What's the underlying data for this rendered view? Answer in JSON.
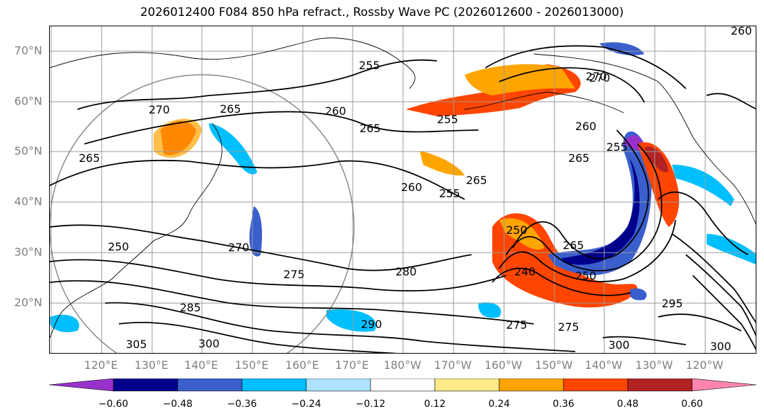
{
  "title": "2026012400 F084 850 hPa refract., Rossby Wave PC (2026012600 - 2026013000)",
  "lat_labels": [
    "70°N",
    "60°N",
    "50°N",
    "40°N",
    "30°N",
    "20°N"
  ],
  "lon_labels": [
    "120°E",
    "130°E",
    "140°E",
    "150°E",
    "160°E",
    "170°E",
    "180°W",
    "170°W",
    "160°W",
    "150°W",
    "140°W",
    "130°W",
    "120°W"
  ],
  "colorbar": {
    "ticks": [
      "−0.60",
      "−0.48",
      "−0.36",
      "−0.24",
      "−0.12",
      "0.12",
      "0.24",
      "0.36",
      "0.48",
      "0.60"
    ],
    "colors": [
      "#9932cc",
      "#00008b",
      "#3a5fcd",
      "#00bfff",
      "#aee2ff",
      "#ffffff",
      "#ffea8a",
      "#ffa500",
      "#ff4500",
      "#b22222",
      "#ff85b0"
    ]
  },
  "contour_labels": [
    {
      "text": "255"
    },
    {
      "text": "265"
    },
    {
      "text": "270"
    },
    {
      "text": "260"
    },
    {
      "text": "265"
    },
    {
      "text": "255"
    },
    {
      "text": "260"
    },
    {
      "text": "255"
    },
    {
      "text": "265"
    },
    {
      "text": "270"
    },
    {
      "text": "275"
    },
    {
      "text": "280"
    },
    {
      "text": "285"
    },
    {
      "text": "290"
    },
    {
      "text": "300"
    },
    {
      "text": "305"
    },
    {
      "text": "265"
    },
    {
      "text": "250"
    },
    {
      "text": "240"
    },
    {
      "text": "250"
    },
    {
      "text": "275"
    },
    {
      "text": "275"
    },
    {
      "text": "300"
    },
    {
      "text": "300"
    },
    {
      "text": "295"
    },
    {
      "text": "270"
    },
    {
      "text": "265"
    },
    {
      "text": "260"
    },
    {
      "text": "255"
    },
    {
      "text": "265"
    },
    {
      "text": "250"
    },
    {
      "text": "270"
    },
    {
      "text": "260"
    }
  ]
}
